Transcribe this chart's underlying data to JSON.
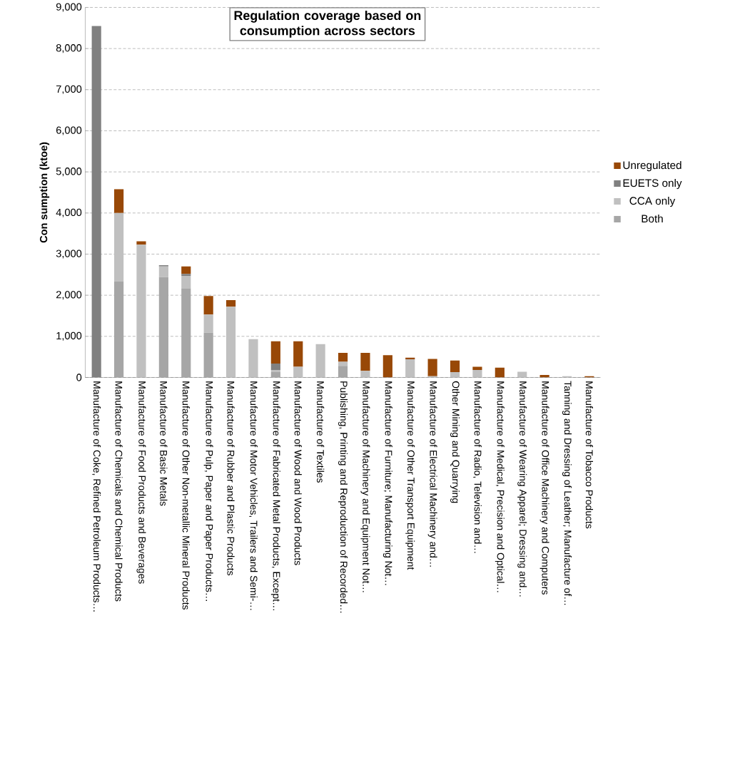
{
  "chart_data": {
    "type": "bar",
    "stacked": true,
    "title": "Regulation coverage based on consumption across sectors",
    "ylabel": "Con sumption (ktoe)",
    "categories": [
      "Manufacture of Coke, Refined Petroleum Products…",
      "Manufacture of Chemicals and Chemical Products",
      "Manufacture of Food Products and Beverages",
      "Manufacture of Basic Metals",
      "Manufacture of Other Non-metallic Mineral Products",
      "Manufacture of Pulp, Paper and Paper Products…",
      "Manufacture of Rubber and Plastic Products",
      "Manufacture of Motor Vehicles, Trailers and Semi-…",
      "Manufacture of Fabricated Metal Products, Except…",
      "Manufacture of Wood and Wood Products",
      "Manufacture of Textiles",
      "Publishing, Printing and Reproduction of Recorded…",
      "Manufacture of Machinery and Equipment Not…",
      "Manufacture of Furniture; Manufacturing Not…",
      "Manufacture of Other Transport Equipment",
      "Manufacture of Electrical Machinery and…",
      "Other Mining and Quarrying",
      "Manufacture of Radio, Television and…",
      "Manufacture of Medical, Precision and Optical…",
      "Manufacture of Wearing Apparel; Dressing and…",
      "Manufacture of Office Machinery and Computers",
      "Tanning and Dressing of Leather; Manufacture of…",
      "Manufacture of Tobacco Products"
    ],
    "series": [
      {
        "name": "Both",
        "color": "#a6a6a6",
        "values": [
          0,
          2340,
          0,
          2440,
          2160,
          1090,
          0,
          0,
          130,
          0,
          0,
          280,
          0,
          0,
          0,
          0,
          0,
          0,
          0,
          0,
          0,
          0,
          0
        ]
      },
      {
        "name": "CCA only",
        "color": "#c0c0c0",
        "values": [
          0,
          1660,
          3230,
          260,
          310,
          440,
          1720,
          930,
          50,
          260,
          810,
          100,
          160,
          0,
          440,
          30,
          130,
          180,
          0,
          140,
          0,
          30,
          0
        ]
      },
      {
        "name": "EUETS only",
        "color": "#808080",
        "values": [
          8550,
          0,
          0,
          30,
          50,
          0,
          0,
          0,
          160,
          0,
          0,
          0,
          0,
          0,
          0,
          0,
          0,
          0,
          0,
          0,
          0,
          0,
          0
        ]
      },
      {
        "name": "Unregulated",
        "color": "#984807",
        "values": [
          0,
          580,
          80,
          0,
          180,
          450,
          160,
          0,
          540,
          620,
          0,
          220,
          440,
          540,
          40,
          420,
          280,
          80,
          240,
          0,
          60,
          0,
          30
        ]
      }
    ],
    "ylim": [
      0,
      9000
    ],
    "yticks": [
      {
        "value": 0,
        "label": "0"
      },
      {
        "value": 1000,
        "label": "1,000"
      },
      {
        "value": 2000,
        "label": "2,000"
      },
      {
        "value": 3000,
        "label": "3,000"
      },
      {
        "value": 4000,
        "label": "4,000"
      },
      {
        "value": 5000,
        "label": "5,000"
      },
      {
        "value": 6000,
        "label": "6,000"
      },
      {
        "value": 7000,
        "label": "7,000"
      },
      {
        "value": 8000,
        "label": "8,000"
      },
      {
        "value": 9000,
        "label": "9,000"
      }
    ],
    "grid": "y",
    "legend": "right"
  }
}
